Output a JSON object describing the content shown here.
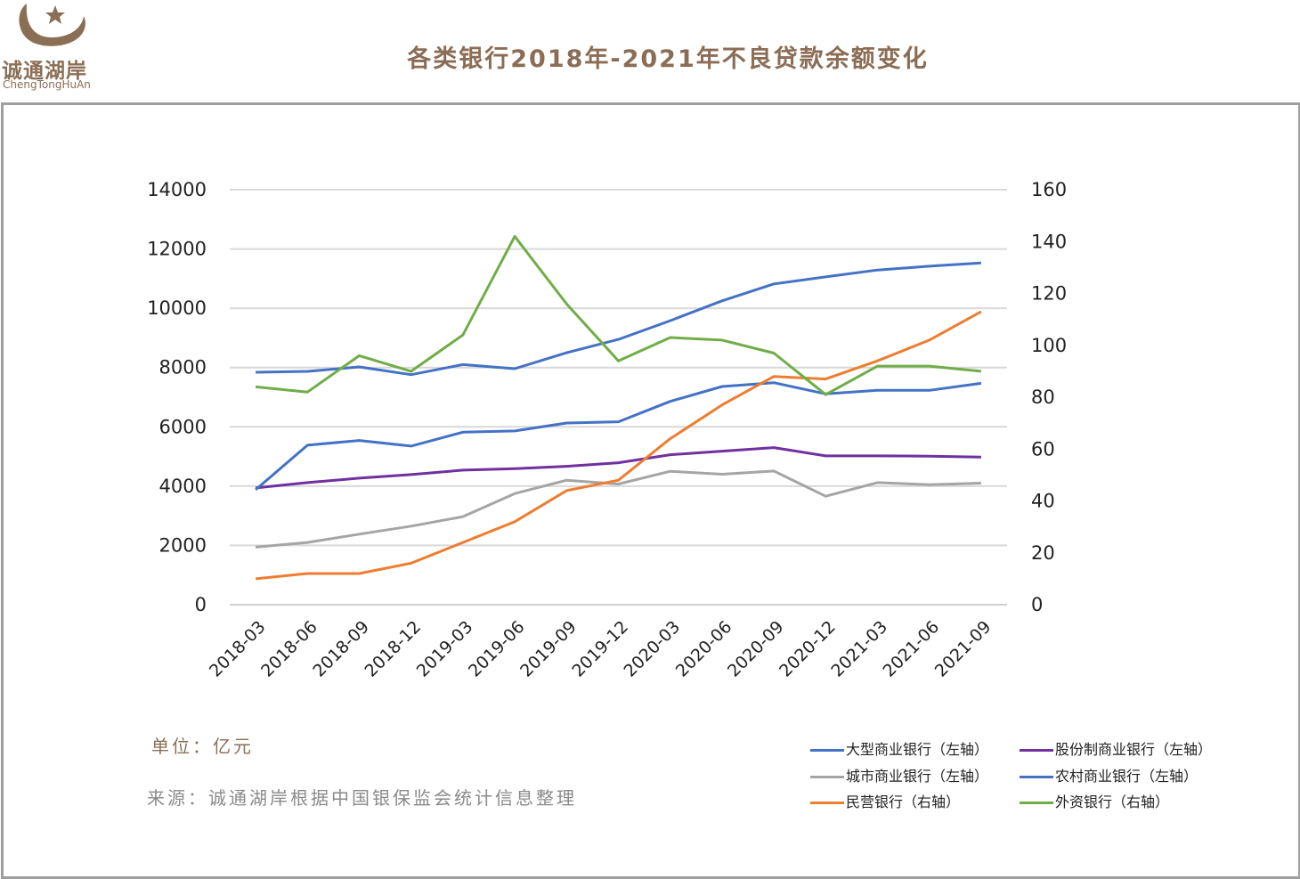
{
  "brand": {
    "name_cn": "诚通湖岸",
    "name_en": "ChengTongHuAn"
  },
  "title": "各类银行2018年-2021年不良贷款余额变化",
  "notes": {
    "unit": "单位：亿元",
    "source": "来源：诚通湖岸根据中国银保监会统计信息整理"
  },
  "chart_data": {
    "type": "line",
    "title": "各类银行2018年-2021年不良贷款余额变化",
    "x": [
      "2018-03",
      "2018-06",
      "2018-09",
      "2018-12",
      "2019-03",
      "2019-06",
      "2019-09",
      "2019-12",
      "2020-03",
      "2020-06",
      "2020-09",
      "2020-12",
      "2021-03",
      "2021-06",
      "2021-09"
    ],
    "y_left": {
      "range": [
        0,
        14000
      ],
      "ticks": [
        "0",
        "2000",
        "4000",
        "6000",
        "8000",
        "10000",
        "12000",
        "14000"
      ]
    },
    "y_right": {
      "range": [
        0,
        160
      ],
      "ticks": [
        "0",
        "20",
        "40",
        "60",
        "80",
        "100",
        "120",
        "140",
        "160"
      ]
    },
    "grid": true,
    "legend_position": "bottom-right",
    "series": [
      {
        "name": "大型商业银行（左轴）",
        "axis": "left",
        "color": "#4472c4",
        "values": [
          7840,
          7870,
          8020,
          7760,
          8100,
          7960,
          8500,
          8950,
          9580,
          10250,
          10820,
          11060,
          11290,
          11420,
          11530
        ]
      },
      {
        "name": "股份制商业银行（左轴）",
        "axis": "left",
        "color": "#7030a0",
        "values": [
          3940,
          4120,
          4270,
          4390,
          4540,
          4590,
          4670,
          4790,
          5060,
          5180,
          5300,
          5020,
          5020,
          5010,
          4980
        ]
      },
      {
        "name": "城市商业银行（左轴）",
        "axis": "left",
        "color": "#a5a5a5",
        "values": [
          1940,
          2100,
          2380,
          2650,
          2970,
          3750,
          4200,
          4070,
          4500,
          4400,
          4510,
          3660,
          4120,
          4050,
          4100
        ]
      },
      {
        "name": "农村商业银行（左轴）",
        "axis": "left",
        "color": "#4472c4",
        "values": [
          3880,
          5380,
          5540,
          5350,
          5820,
          5860,
          6130,
          6170,
          6860,
          7360,
          7490,
          7110,
          7230,
          7230,
          7470
        ]
      },
      {
        "name": "民营银行（右轴）",
        "axis": "right",
        "color": "#ed7d31",
        "values": [
          10,
          12,
          12,
          16,
          24,
          32,
          44,
          48,
          64,
          77,
          88,
          87,
          94,
          102,
          113
        ]
      },
      {
        "name": "外资银行（右轴）",
        "axis": "right",
        "color": "#70ad47",
        "values": [
          84,
          82,
          96,
          90,
          104,
          142,
          116,
          94,
          103,
          102,
          97,
          81,
          92,
          92,
          90
        ]
      }
    ]
  }
}
